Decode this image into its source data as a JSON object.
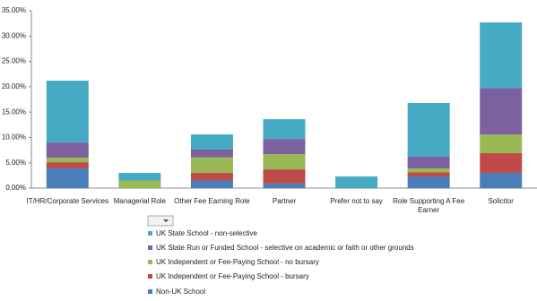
{
  "chart_data": {
    "type": "stacked_bar",
    "categories": [
      "IT/HR/Corporate Services",
      "Managerial Role",
      "Other Fee Earning Role",
      "Partner",
      "Prefer not to say",
      "Role Supporting A Fee Earner",
      "Solicitor"
    ],
    "series": [
      {
        "name": "Non-UK School",
        "color": "#4a7ebb",
        "values": [
          3.9,
          0,
          1.5,
          0.9,
          0,
          2.3,
          3.0
        ]
      },
      {
        "name": "UK Independent or Fee-Paying School - bursary",
        "color": "#be4b48",
        "values": [
          1.2,
          0,
          1.5,
          2.8,
          0,
          0.8,
          3.9
        ]
      },
      {
        "name": "UK Independent or Fee-Paying School - no bursary",
        "color": "#98b954",
        "values": [
          0.9,
          1.5,
          3.1,
          3.0,
          0,
          0.8,
          3.7
        ]
      },
      {
        "name": "UK State Run or Funded School - selective on academic or faith or other grounds",
        "color": "#7d60a0",
        "values": [
          3.0,
          0,
          1.5,
          3.0,
          0,
          2.3,
          9.1
        ]
      },
      {
        "name": "UK State School - non-selective",
        "color": "#46aac5",
        "values": [
          12.2,
          1.5,
          3.0,
          3.9,
          2.3,
          10.6,
          13.0
        ]
      }
    ],
    "ylim": [
      0,
      35
    ],
    "yticks": [
      {
        "value": 0,
        "label": "0.00%"
      },
      {
        "value": 5,
        "label": "5.00%"
      },
      {
        "value": 10,
        "label": "10.00%"
      },
      {
        "value": 15,
        "label": "15.00%"
      },
      {
        "value": 20,
        "label": "20.00%"
      },
      {
        "value": 25,
        "label": "25.00%"
      },
      {
        "value": 30,
        "label": "30.00%"
      },
      {
        "value": 35,
        "label": "35.00%"
      }
    ],
    "grid": false
  }
}
